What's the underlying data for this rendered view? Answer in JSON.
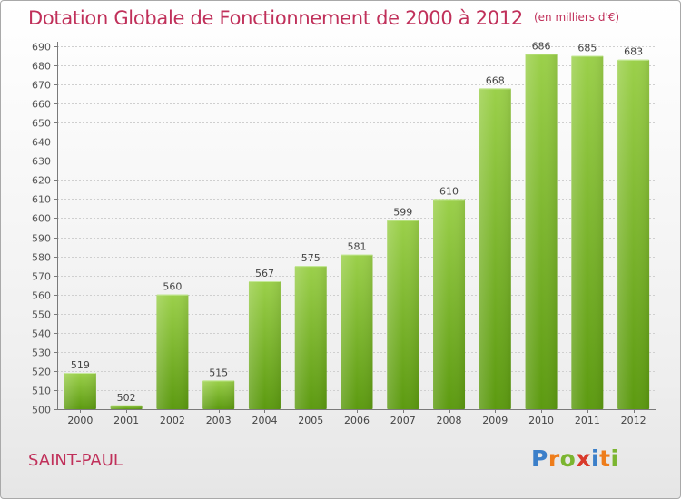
{
  "header": {
    "title": "Dotation Globale de Fonctionnement de 2000 à 2012",
    "subtitle": "(en milliers d'€)"
  },
  "footer": {
    "commune": "SAINT-PAUL",
    "brand_letters": [
      "P",
      "r",
      "o",
      "x",
      "i",
      "t",
      "i"
    ],
    "brand_colors": [
      "#3b7fc9",
      "#ee7d1b",
      "#7bb530",
      "#d93a2b",
      "#3b7fc9",
      "#ee7d1b",
      "#7bb530"
    ]
  },
  "chart_data": {
    "type": "bar",
    "title": "Dotation Globale de Fonctionnement de 2000 à 2012",
    "subtitle": "(en milliers d'€)",
    "categories": [
      "2000",
      "2001",
      "2002",
      "2003",
      "2004",
      "2005",
      "2006",
      "2007",
      "2008",
      "2009",
      "2010",
      "2011",
      "2012"
    ],
    "values": [
      519,
      502,
      560,
      515,
      567,
      575,
      581,
      599,
      610,
      668,
      686,
      685,
      683
    ],
    "ylim": [
      500,
      690
    ],
    "ytick_step": 10,
    "grid": true,
    "bar_color_top": "#9bd04a",
    "bar_color_bottom": "#5c9a10",
    "axis_color": "#7a7a7a"
  }
}
